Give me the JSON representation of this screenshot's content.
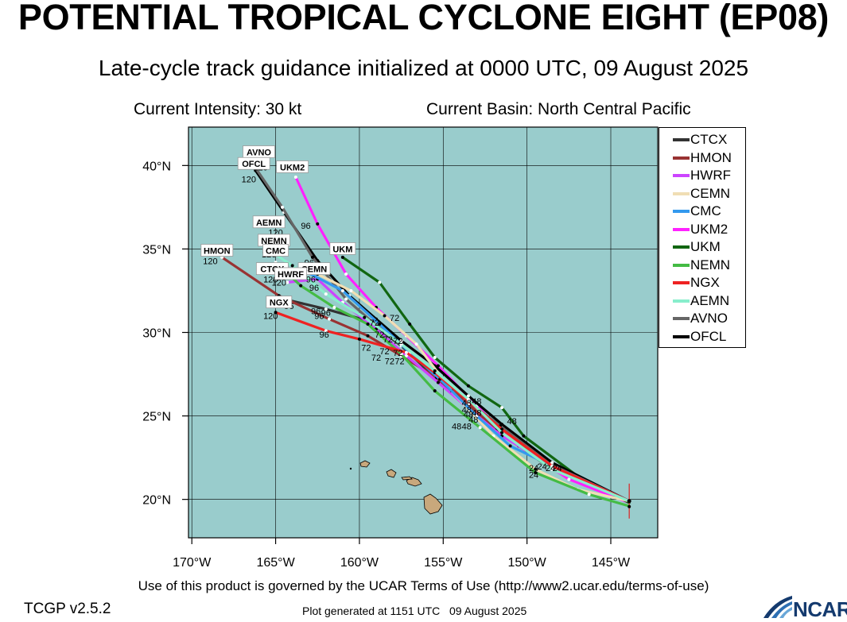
{
  "title": "POTENTIAL TROPICAL CYCLONE EIGHT (EP08)",
  "subtitle": "Late-cycle track guidance initialized at 0000 UTC, 09 August 2025",
  "intensity": "Current Intensity: 30 kt",
  "basin": "Current Basin: North Central Pacific",
  "footer": {
    "terms": "Use of this product is governed by the UCAR Terms of Use (http://www2.ucar.edu/terms-of-use)",
    "version": "TCGP v2.5.2",
    "generated": "Plot generated at 1151 UTC   09 August 2025",
    "logo_text": "NCAR"
  },
  "colors": {
    "ocean": "#99cccc",
    "land": "#c8a87c",
    "grid": "#000000"
  },
  "axes": {
    "lon_labels": [
      "170°W",
      "165°W",
      "160°W",
      "155°W",
      "150°W",
      "145°W"
    ],
    "lat_labels": [
      "40°N",
      "35°N",
      "30°N",
      "25°N",
      "20°N"
    ],
    "lon_ticks": [
      -170,
      -165,
      -160,
      -155,
      -150,
      -145
    ],
    "lat_ticks": [
      40,
      35,
      30,
      25,
      20
    ]
  },
  "legend": [
    {
      "name": "CTCX",
      "color": "#333333"
    },
    {
      "name": "HMON",
      "color": "#993333"
    },
    {
      "name": "HWRF",
      "color": "#cc44ff"
    },
    {
      "name": "CEMN",
      "color": "#f0deb4"
    },
    {
      "name": "CMC",
      "color": "#3399ee"
    },
    {
      "name": "UKM2",
      "color": "#ff22ff"
    },
    {
      "name": "UKM",
      "color": "#116611"
    },
    {
      "name": "NEMN",
      "color": "#44bb44"
    },
    {
      "name": "NGX",
      "color": "#ee2222"
    },
    {
      "name": "AEMN",
      "color": "#88eecc"
    },
    {
      "name": "AVNO",
      "color": "#666666"
    },
    {
      "name": "OFCL",
      "color": "#000000"
    }
  ],
  "chart_data": {
    "type": "map",
    "lon_range": [
      -170.2,
      -142.2
    ],
    "lat_range": [
      17.7,
      42.3
    ],
    "current_position": {
      "lon": -143.9,
      "lat": 19.9
    },
    "tracks": [
      {
        "model": "UKM2",
        "end_label": "UKM2",
        "points": [
          [
            -143.9,
            19.8
          ],
          [
            -147.5,
            21.2
          ],
          [
            -150.5,
            23.2
          ],
          [
            -153,
            25.6
          ],
          [
            -155.3,
            28
          ],
          [
            -157.2,
            29.8
          ],
          [
            -159,
            31.5
          ],
          [
            -160.8,
            33.5
          ],
          [
            -162.5,
            36.5
          ],
          [
            -163.8,
            39.3
          ]
        ]
      },
      {
        "model": "UKM",
        "end_label": "UKM",
        "points": [
          [
            -143.9,
            19.8
          ],
          [
            -147,
            21.4
          ],
          [
            -150.2,
            23.8
          ],
          [
            -151.5,
            25.5
          ],
          [
            -153.5,
            26.8
          ],
          [
            -155.5,
            28.5
          ],
          [
            -157,
            30.5
          ],
          [
            -158.8,
            33
          ],
          [
            -161,
            34.5
          ]
        ]
      },
      {
        "model": "OFCL",
        "end_label": "OFCL",
        "points": [
          [
            -143.9,
            19.9
          ],
          [
            -148.5,
            22.2
          ],
          [
            -151.5,
            24.5
          ],
          [
            -153.5,
            26.2
          ],
          [
            -155.5,
            28
          ],
          [
            -157.5,
            29.5
          ],
          [
            -159,
            30.8
          ],
          [
            -160.6,
            32.2
          ],
          [
            -162.5,
            34.3
          ],
          [
            -164.5,
            37.2
          ],
          [
            -166.2,
            39.7
          ]
        ]
      },
      {
        "model": "AVNO",
        "end_label": "AVNO",
        "points": [
          [
            -143.9,
            19.9
          ],
          [
            -148.6,
            22.1
          ],
          [
            -151.6,
            24.4
          ],
          [
            -153.7,
            26
          ],
          [
            -155.7,
            27.8
          ],
          [
            -157.5,
            29.3
          ],
          [
            -159.2,
            30.6
          ],
          [
            -160.8,
            32
          ],
          [
            -162.8,
            34.5
          ],
          [
            -164.6,
            37.5
          ],
          [
            -166.3,
            40
          ]
        ]
      },
      {
        "model": "CTCX",
        "end_label": "CTCX",
        "points": [
          [
            -143.9,
            19.9
          ],
          [
            -148.8,
            22
          ],
          [
            -151.8,
            24.2
          ],
          [
            -153.8,
            25.9
          ],
          [
            -155.8,
            27.6
          ],
          [
            -157.5,
            29.2
          ],
          [
            -159.5,
            30.7
          ],
          [
            -162,
            31.4
          ],
          [
            -164.5,
            32
          ]
        ]
      },
      {
        "model": "HMON",
        "end_label": "HMON",
        "points": [
          [
            -143.9,
            19.9
          ],
          [
            -148.8,
            22.1
          ],
          [
            -151.8,
            24.2
          ],
          [
            -153.5,
            25.7
          ],
          [
            -155.4,
            27.3
          ],
          [
            -157.5,
            28.6
          ],
          [
            -159.5,
            29.8
          ],
          [
            -161.8,
            30.8
          ],
          [
            -164.8,
            32.2
          ],
          [
            -168.2,
            34.5
          ]
        ]
      },
      {
        "model": "HWRF",
        "end_label": "HWRF",
        "points": [
          [
            -143.9,
            19.9
          ],
          [
            -148.5,
            22
          ],
          [
            -151.5,
            23.8
          ],
          [
            -153.2,
            25.2
          ],
          [
            -155.3,
            27
          ],
          [
            -157.2,
            28.6
          ],
          [
            -159,
            30.2
          ],
          [
            -161,
            31.8
          ],
          [
            -162.5,
            33.2
          ],
          [
            -164.3,
            33
          ]
        ]
      },
      {
        "model": "CEMN",
        "end_label": "CEMN",
        "points": [
          [
            -143.9,
            19.9
          ],
          [
            -147,
            20.6
          ],
          [
            -149.5,
            21.8
          ],
          [
            -152,
            23.8
          ],
          [
            -154.5,
            26.5
          ],
          [
            -156.6,
            29.3
          ],
          [
            -158.5,
            31
          ],
          [
            -160.5,
            32.5
          ],
          [
            -162.5,
            33.5
          ]
        ]
      },
      {
        "model": "CMC",
        "end_label": "CMC",
        "points": [
          [
            -143.9,
            19.9
          ],
          [
            -148.5,
            22
          ],
          [
            -151,
            23.2
          ],
          [
            -153,
            25
          ],
          [
            -155.2,
            27.2
          ],
          [
            -157,
            28.8
          ],
          [
            -158.8,
            30.5
          ],
          [
            -161,
            32.5
          ],
          [
            -163.5,
            33.8
          ]
        ]
      },
      {
        "model": "NEMN",
        "end_label": "NEMN",
        "points": [
          [
            -143.9,
            19.6
          ],
          [
            -146.3,
            20.3
          ],
          [
            -149.5,
            21.6
          ],
          [
            -152.8,
            24.3
          ],
          [
            -155.5,
            26.5
          ],
          [
            -157.5,
            28.7
          ],
          [
            -159.5,
            30.5
          ],
          [
            -161.5,
            31.5
          ],
          [
            -163.5,
            32.8
          ],
          [
            -165,
            34.2
          ]
        ]
      },
      {
        "model": "NGX",
        "end_label": "NGX",
        "points": [
          [
            -143.9,
            19.9
          ],
          [
            -148.5,
            22
          ],
          [
            -151.5,
            24.2
          ],
          [
            -153.5,
            25.9
          ],
          [
            -155.5,
            27.6
          ],
          [
            -157.2,
            28.8
          ],
          [
            -160,
            29.6
          ],
          [
            -162,
            30.1
          ],
          [
            -165,
            31.2
          ]
        ]
      },
      {
        "model": "AEMN",
        "end_label": "AEMN",
        "points": [
          [
            -143.9,
            19.9
          ],
          [
            -148.5,
            21.8
          ],
          [
            -151.5,
            24
          ],
          [
            -153.5,
            26
          ],
          [
            -155.5,
            27.7
          ],
          [
            -157.5,
            29.3
          ],
          [
            -159.7,
            30.9
          ],
          [
            -162,
            32.3
          ],
          [
            -164,
            34
          ],
          [
            -165.5,
            35
          ]
        ]
      }
    ],
    "hour_labels": [
      {
        "text": "120",
        "lon": -166.6,
        "lat": 39.0
      },
      {
        "text": "120",
        "lon": -165.9,
        "lat": 39.7
      },
      {
        "text": "96",
        "lon": -163.2,
        "lat": 36.2
      },
      {
        "text": "120",
        "lon": -165.0,
        "lat": 35.8
      },
      {
        "text": "120",
        "lon": -165.4,
        "lat": 34.5
      },
      {
        "text": "120",
        "lon": -168.9,
        "lat": 34.1
      },
      {
        "text": "96",
        "lon": -163.0,
        "lat": 34.0
      },
      {
        "text": "96",
        "lon": -162.9,
        "lat": 33.6
      },
      {
        "text": "120",
        "lon": -165.3,
        "lat": 33.0
      },
      {
        "text": "120",
        "lon": -164.8,
        "lat": 32.8
      },
      {
        "text": "96",
        "lon": -162.9,
        "lat": 33.0
      },
      {
        "text": "96",
        "lon": -162.7,
        "lat": 32.5
      },
      {
        "text": "96",
        "lon": -164.2,
        "lat": 31.4
      },
      {
        "text": "96",
        "lon": -162.6,
        "lat": 31.1
      },
      {
        "text": "96",
        "lon": -162.0,
        "lat": 31.0
      },
      {
        "text": "96",
        "lon": -162.4,
        "lat": 30.8
      },
      {
        "text": "120",
        "lon": -165.3,
        "lat": 30.8
      },
      {
        "text": "96",
        "lon": -162.1,
        "lat": 29.7
      },
      {
        "text": "72",
        "lon": -157.9,
        "lat": 30.7
      },
      {
        "text": "72",
        "lon": -159.1,
        "lat": 30.4
      },
      {
        "text": "72",
        "lon": -158.8,
        "lat": 29.7
      },
      {
        "text": "72",
        "lon": -158.3,
        "lat": 29.4
      },
      {
        "text": "72",
        "lon": -157.7,
        "lat": 29.3
      },
      {
        "text": "72",
        "lon": -159.6,
        "lat": 28.9
      },
      {
        "text": "72",
        "lon": -158.5,
        "lat": 28.7
      },
      {
        "text": "72",
        "lon": -157.7,
        "lat": 28.6
      },
      {
        "text": "72",
        "lon": -159.0,
        "lat": 28.3
      },
      {
        "text": "72",
        "lon": -158.2,
        "lat": 28.1
      },
      {
        "text": "72",
        "lon": -157.6,
        "lat": 28.1
      },
      {
        "text": "48",
        "lon": -153.6,
        "lat": 25.6
      },
      {
        "text": "48",
        "lon": -153.0,
        "lat": 25.7
      },
      {
        "text": "48",
        "lon": -153.6,
        "lat": 25.2
      },
      {
        "text": "48",
        "lon": -153.5,
        "lat": 24.9
      },
      {
        "text": "48",
        "lon": -153.0,
        "lat": 25.0
      },
      {
        "text": "48",
        "lon": -153.2,
        "lat": 24.6
      },
      {
        "text": "48",
        "lon": -154.2,
        "lat": 24.2
      },
      {
        "text": "48",
        "lon": -153.6,
        "lat": 24.2
      },
      {
        "text": "48",
        "lon": -150.9,
        "lat": 24.5
      },
      {
        "text": "24",
        "lon": -149.6,
        "lat": 21.7
      },
      {
        "text": "24",
        "lon": -149.1,
        "lat": 21.8
      },
      {
        "text": "24",
        "lon": -148.6,
        "lat": 21.7
      },
      {
        "text": "24",
        "lon": -149.6,
        "lat": 21.3
      },
      {
        "text": "24",
        "lon": -148.2,
        "lat": 21.7
      }
    ],
    "end_boxes": [
      {
        "text": "AVNO",
        "lon": -166.0,
        "lat": 40.8
      },
      {
        "text": "OFCL",
        "lon": -166.3,
        "lat": 40.1
      },
      {
        "text": "UKM2",
        "lon": -164.0,
        "lat": 39.9
      },
      {
        "text": "AEMN",
        "lon": -165.4,
        "lat": 36.6
      },
      {
        "text": "NEMN",
        "lon": -165.1,
        "lat": 35.5
      },
      {
        "text": "CMC",
        "lon": -165.0,
        "lat": 34.9
      },
      {
        "text": "HMON",
        "lon": -168.5,
        "lat": 34.9
      },
      {
        "text": "UKM",
        "lon": -161.0,
        "lat": 35.0
      },
      {
        "text": "CEMN",
        "lon": -162.7,
        "lat": 33.8
      },
      {
        "text": "CTCX",
        "lon": -165.2,
        "lat": 33.8
      },
      {
        "text": "HWRF",
        "lon": -164.1,
        "lat": 33.5
      },
      {
        "text": "NGX",
        "lon": -164.8,
        "lat": 31.8
      }
    ]
  }
}
